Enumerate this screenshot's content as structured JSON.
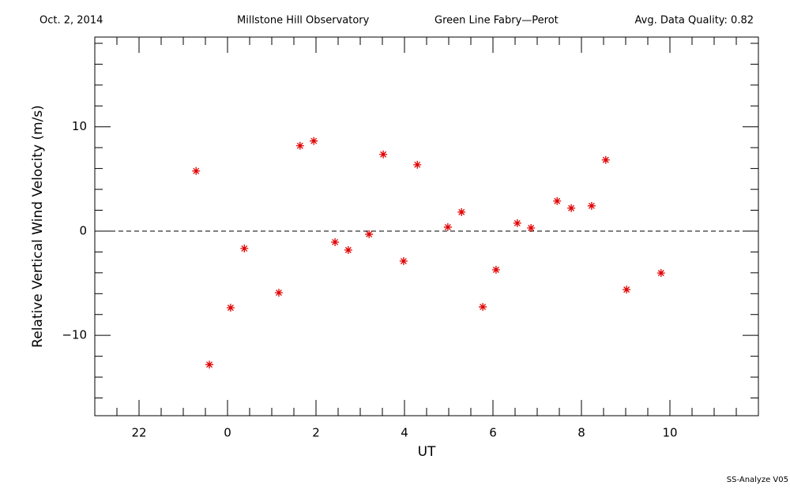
{
  "chart_data": {
    "type": "scatter",
    "header": [
      "Oct. 2, 2014",
      "Millstone Hill Observatory",
      "Green Line Fabry—Perot",
      "Avg. Data Quality: 0.82"
    ],
    "footer": "SS-Analyze V05",
    "xlabel": "UT",
    "ylabel": "Relative Vertical Wind Velocity (m/s)",
    "xlim": [
      -3,
      12
    ],
    "ylim": [
      -17.7,
      18.6
    ],
    "xticks": [
      {
        "value": -2,
        "label": "22"
      },
      0,
      2,
      4,
      6,
      8,
      10
    ],
    "yticks": [
      {
        "value": -10,
        "label": "−10"
      },
      0,
      10
    ],
    "xminor_ticks": [
      -2.5,
      -1.5,
      -1,
      -0.5,
      0.5,
      1,
      1.5,
      2.5,
      3,
      3.5,
      4.5,
      5,
      5.5,
      6.5,
      7,
      7.5,
      8.5,
      9,
      9.5,
      10.5,
      11,
      11.5
    ],
    "yminor_ticks": [
      -16,
      -14,
      -12,
      -8,
      -6,
      -4,
      -2,
      2,
      4,
      6,
      8,
      12,
      14,
      16,
      18
    ],
    "hline": 0,
    "series": [
      {
        "color": "#e00000",
        "x": [
          -0.71,
          -0.41,
          0.07,
          0.38,
          1.16,
          1.64,
          1.95,
          2.43,
          2.73,
          3.2,
          3.52,
          3.98,
          4.29,
          4.98,
          5.29,
          5.77,
          6.07,
          6.55,
          6.86,
          7.45,
          7.77,
          8.23,
          8.55,
          9.02,
          9.8
        ],
        "values": [
          5.76,
          -12.8,
          -7.35,
          -1.67,
          -5.91,
          8.18,
          8.64,
          -1.06,
          -1.82,
          -0.3,
          7.35,
          -2.88,
          6.36,
          0.38,
          1.82,
          -7.27,
          -3.71,
          0.76,
          0.3,
          2.88,
          2.2,
          2.42,
          6.82,
          -5.61,
          -4.02
        ]
      }
    ]
  }
}
